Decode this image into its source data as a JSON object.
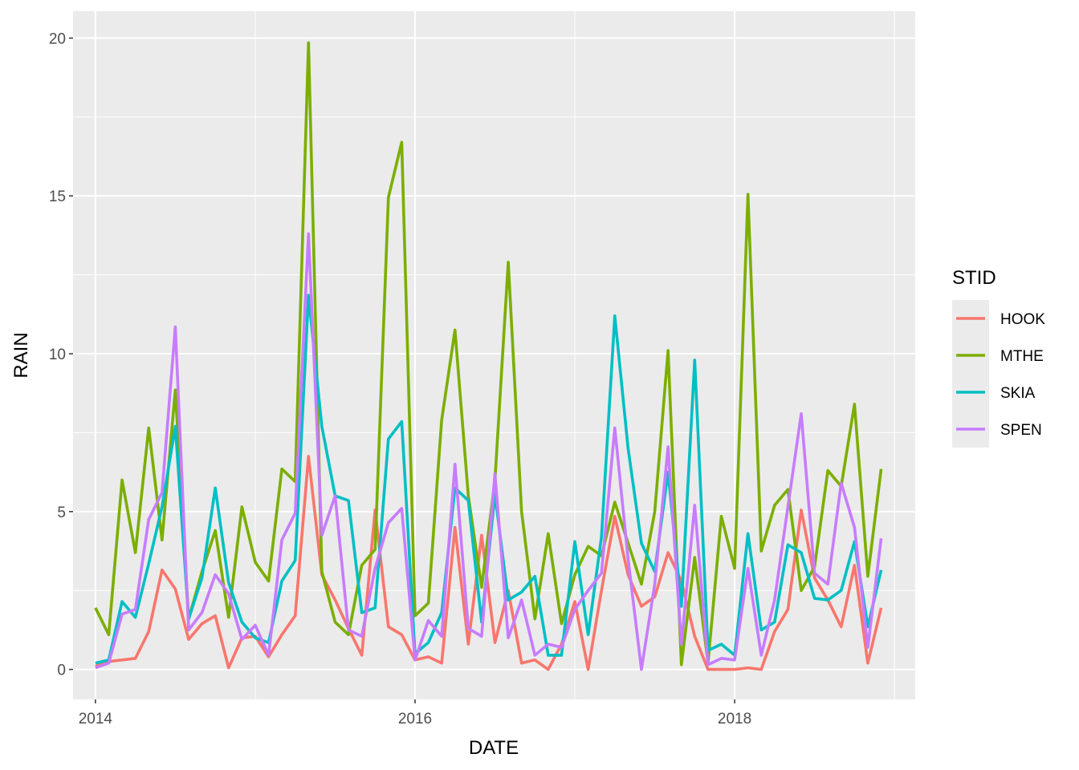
{
  "chart_data": {
    "type": "line",
    "title": "",
    "xlabel": "DATE",
    "ylabel": "RAIN",
    "xlim": [
      2013.86,
      2019.13
    ],
    "ylim": [
      -0.95,
      20.85
    ],
    "x_ticks": [
      {
        "value": 2014,
        "label": "2014"
      },
      {
        "value": 2016,
        "label": "2016"
      },
      {
        "value": 2018,
        "label": "2018"
      }
    ],
    "y_ticks": [
      {
        "value": 0,
        "label": "0"
      },
      {
        "value": 5,
        "label": "5"
      },
      {
        "value": 10,
        "label": "10"
      },
      {
        "value": 15,
        "label": "15"
      },
      {
        "value": 20,
        "label": "20"
      }
    ],
    "grid": true,
    "legend": {
      "title": "STID",
      "position": "right"
    },
    "x_start_year": 2014,
    "x_step_months": 1,
    "series": [
      {
        "name": "HOOK",
        "color": "#F8766D",
        "values": [
          0.1,
          0.25,
          0.3,
          0.35,
          1.2,
          3.15,
          2.55,
          0.95,
          1.45,
          1.7,
          0.05,
          1.0,
          1.05,
          0.4,
          1.1,
          1.7,
          6.75,
          3.0,
          2.2,
          1.3,
          0.45,
          5.05,
          1.35,
          1.1,
          0.3,
          0.4,
          0.2,
          4.5,
          0.8,
          4.25,
          0.85,
          2.5,
          0.2,
          0.3,
          0.0,
          0.8,
          2.15,
          0.0,
          2.5,
          4.85,
          3.0,
          2.0,
          2.3,
          3.7,
          2.8,
          1.05,
          0.0,
          0.0,
          0.0,
          0.05,
          0.0,
          1.2,
          1.9,
          5.05,
          2.9,
          2.2,
          1.35,
          3.3,
          0.2,
          1.95
        ]
      },
      {
        "name": "MTHE",
        "color": "#7CAE00",
        "values": [
          1.95,
          1.1,
          6.0,
          3.7,
          7.65,
          4.1,
          8.85,
          1.6,
          3.1,
          4.4,
          1.65,
          5.15,
          3.4,
          2.8,
          6.35,
          5.95,
          19.85,
          3.1,
          1.5,
          1.1,
          3.3,
          3.8,
          14.95,
          16.7,
          1.7,
          2.1,
          7.9,
          10.75,
          5.5,
          2.6,
          6.0,
          12.9,
          5.0,
          1.6,
          4.3,
          1.45,
          3.0,
          3.9,
          3.6,
          5.3,
          4.0,
          2.7,
          5.0,
          10.1,
          0.15,
          3.55,
          0.2,
          4.85,
          3.2,
          15.05,
          3.75,
          5.2,
          5.7,
          2.5,
          3.25,
          6.3,
          5.8,
          8.4,
          2.95,
          6.35
        ]
      },
      {
        "name": "SKIA",
        "color": "#00BFC4",
        "values": [
          0.2,
          0.3,
          2.15,
          1.65,
          3.35,
          5.15,
          7.7,
          1.6,
          2.9,
          5.75,
          2.75,
          1.5,
          1.0,
          0.85,
          2.8,
          3.45,
          11.85,
          7.7,
          5.5,
          5.35,
          1.8,
          1.95,
          7.3,
          7.85,
          0.5,
          0.85,
          1.8,
          5.75,
          5.35,
          1.5,
          5.55,
          2.2,
          2.45,
          2.95,
          0.45,
          0.45,
          4.05,
          1.1,
          4.2,
          11.2,
          7.0,
          4.0,
          3.1,
          6.25,
          2.0,
          9.8,
          0.6,
          0.8,
          0.45,
          4.3,
          1.25,
          1.5,
          3.95,
          3.7,
          2.25,
          2.2,
          2.5,
          4.05,
          1.35,
          3.15
        ]
      },
      {
        "name": "SPEN",
        "color": "#C77CFF",
        "values": [
          0.05,
          0.2,
          1.75,
          1.9,
          4.75,
          5.6,
          10.85,
          1.25,
          1.8,
          3.0,
          2.4,
          0.95,
          1.4,
          0.45,
          4.1,
          4.95,
          13.8,
          4.25,
          5.5,
          1.25,
          1.05,
          3.2,
          4.65,
          5.1,
          0.3,
          1.55,
          1.05,
          6.5,
          1.3,
          1.05,
          6.2,
          1.0,
          2.2,
          0.45,
          0.8,
          0.7,
          1.9,
          2.5,
          3.05,
          7.65,
          3.5,
          0.0,
          2.7,
          7.05,
          0.8,
          5.2,
          0.15,
          0.35,
          0.3,
          3.2,
          0.45,
          2.2,
          5.15,
          8.1,
          3.05,
          2.7,
          5.9,
          4.5,
          0.7,
          4.15
        ]
      }
    ]
  }
}
